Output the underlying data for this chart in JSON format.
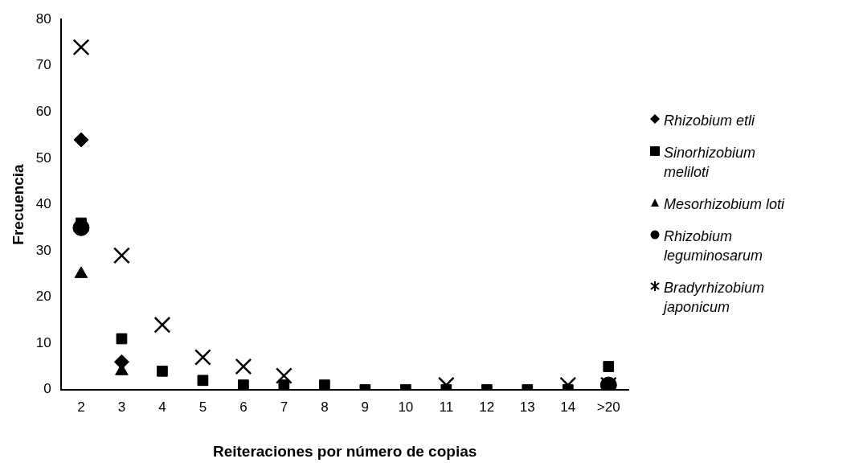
{
  "chart_data": {
    "type": "scatter",
    "xlabel": "Reiteraciones por número de copias",
    "ylabel": "Frecuencia",
    "categories": [
      "2",
      "3",
      "4",
      "5",
      "6",
      "7",
      "8",
      "9",
      "10",
      "11",
      "12",
      "13",
      "14",
      ">20"
    ],
    "ylim": [
      0,
      80
    ],
    "yticks": [
      0,
      10,
      20,
      30,
      40,
      50,
      60,
      70,
      80
    ],
    "grid": false,
    "legend": "right",
    "series": [
      {
        "name": "Rhizobium etli",
        "color": "#000000",
        "marker": "diamond",
        "values": [
          54,
          6,
          null,
          null,
          null,
          null,
          null,
          null,
          null,
          null,
          null,
          null,
          null,
          null
        ]
      },
      {
        "name": "Sinorhizobium meliloti",
        "color": "#000000",
        "marker": "square",
        "values": [
          36,
          11,
          4,
          2,
          1,
          1,
          1,
          0,
          0,
          0,
          0,
          0,
          0,
          5
        ]
      },
      {
        "name": "Mesorhizobium loti",
        "color": "#000000",
        "marker": "triangle",
        "values": [
          25,
          4,
          null,
          null,
          null,
          null,
          null,
          null,
          null,
          null,
          null,
          null,
          null,
          null
        ]
      },
      {
        "name": "Rhizobium leguminosarum",
        "color": "#000000",
        "marker": "circle",
        "values": [
          35,
          null,
          null,
          null,
          null,
          null,
          null,
          null,
          null,
          null,
          null,
          null,
          null,
          1
        ]
      },
      {
        "name": "Bradyrhizobium japonicum",
        "color": "#000000",
        "marker": "cross",
        "values": [
          74,
          29,
          14,
          7,
          5,
          3,
          null,
          null,
          null,
          1,
          null,
          null,
          1,
          1
        ]
      }
    ]
  }
}
